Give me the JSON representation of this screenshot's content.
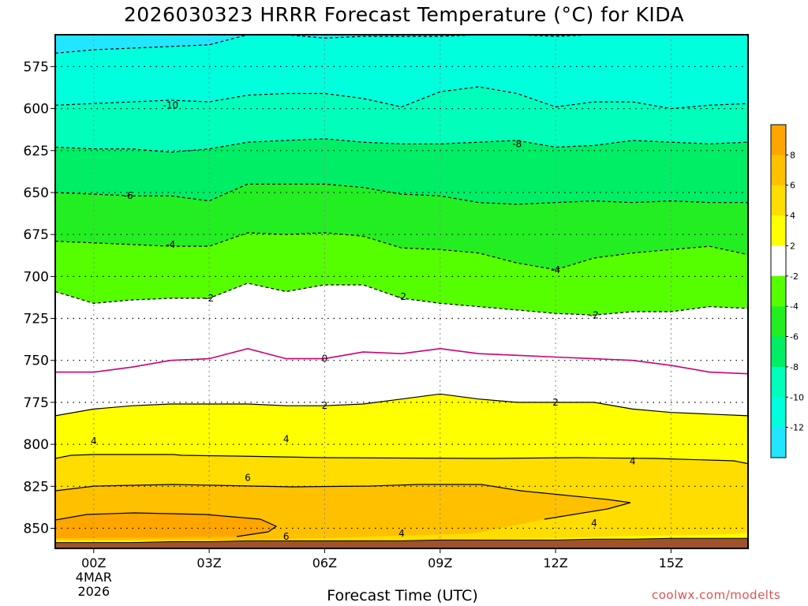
{
  "chart_data": {
    "type": "contour",
    "title": "2026030323 HRRR Forecast Temperature (°C) for KIDA",
    "xlabel": "Forecast Time (UTC)",
    "ylabel": "",
    "x": [
      -1,
      0,
      1,
      2,
      3,
      4,
      5,
      6,
      7,
      8,
      9,
      10,
      11,
      12,
      13,
      14,
      15,
      16,
      17
    ],
    "x_tick_values": [
      0,
      3,
      6,
      9,
      12,
      15
    ],
    "x_tick_labels": [
      "00Z",
      "03Z",
      "06Z",
      "09Z",
      "12Z",
      "15Z"
    ],
    "x_date_label": [
      "4MAR",
      "2026"
    ],
    "xlim": [
      -1,
      17
    ],
    "y_ticks": [
      575,
      600,
      625,
      650,
      675,
      700,
      725,
      750,
      775,
      800,
      825,
      850
    ],
    "ylim": [
      556,
      862
    ],
    "y_axis_inverted": true,
    "surface_pressure": [
      858.5,
      858.5,
      858.5,
      858,
      858,
      857.5,
      857.5,
      857.5,
      857.5,
      857.5,
      857,
      857,
      857,
      857,
      856.5,
      856.5,
      856,
      856,
      856
    ],
    "isotherms": [
      {
        "value": -12,
        "pressure": [
          567,
          565,
          564,
          563,
          562,
          556,
          556,
          558,
          557,
          557,
          557,
          556,
          556,
          557,
          556,
          556,
          556,
          556,
          556
        ]
      },
      {
        "value": -10,
        "pressure": [
          598,
          597,
          596,
          595,
          596,
          592,
          591,
          591,
          594,
          599,
          590,
          587,
          591,
          599,
          596,
          596,
          600,
          598,
          597
        ]
      },
      {
        "value": -8,
        "pressure": [
          623,
          624,
          624,
          626,
          624,
          620,
          619,
          618,
          620,
          621,
          621,
          620,
          619,
          623,
          622,
          619,
          620,
          621,
          620
        ]
      },
      {
        "value": -6,
        "pressure": [
          650,
          651,
          652,
          652,
          655,
          645,
          645,
          645,
          647,
          651,
          652,
          656,
          657,
          656,
          655,
          656,
          655,
          656,
          656
        ]
      },
      {
        "value": -4,
        "pressure": [
          679,
          680,
          681,
          682,
          682,
          674,
          675,
          674,
          676,
          683,
          684,
          686,
          692,
          696,
          689,
          686,
          684,
          682,
          687
        ]
      },
      {
        "value": -2,
        "pressure": [
          709,
          716,
          714,
          713,
          713,
          704,
          709,
          705,
          705,
          713,
          716,
          718,
          720,
          722,
          723,
          721,
          721,
          718,
          719
        ]
      },
      {
        "value": 0,
        "pressure": [
          757,
          757,
          754,
          750,
          749,
          743,
          749,
          749,
          745,
          746,
          743,
          746,
          747,
          748,
          749,
          750,
          753,
          757,
          758
        ]
      },
      {
        "value": 2,
        "pressure": [
          783,
          779,
          777,
          776,
          776,
          776,
          777,
          777,
          776,
          773,
          770,
          773,
          775,
          775,
          775,
          779,
          781,
          782,
          783
        ]
      }
    ],
    "contour_labels": [
      {
        "value": "-10",
        "x": 2.0,
        "y": 598
      },
      {
        "value": "-8",
        "x": 11.0,
        "y": 621
      },
      {
        "value": "-6",
        "x": 0.9,
        "y": 652
      },
      {
        "value": "-4",
        "x": 2.0,
        "y": 681
      },
      {
        "value": "-4",
        "x": 12.0,
        "y": 696
      },
      {
        "value": "-2",
        "x": 3.0,
        "y": 713
      },
      {
        "value": "-2",
        "x": 8.0,
        "y": 712
      },
      {
        "value": "-2",
        "x": 13.0,
        "y": 723
      },
      {
        "value": "0",
        "x": 6.0,
        "y": 749
      },
      {
        "value": "2",
        "x": 6.0,
        "y": 777
      },
      {
        "value": "2",
        "x": 12.0,
        "y": 775
      },
      {
        "value": "4",
        "x": 0.0,
        "y": 798
      },
      {
        "value": "4",
        "x": 5.0,
        "y": 797
      },
      {
        "value": "4",
        "x": 14.0,
        "y": 810
      },
      {
        "value": "4",
        "x": 13.0,
        "y": 847
      },
      {
        "value": "4",
        "x": 8.0,
        "y": 853
      },
      {
        "value": "6",
        "x": 4.0,
        "y": 820
      },
      {
        "value": "6",
        "x": 5.0,
        "y": 855
      }
    ],
    "colorbar": {
      "labels": [
        "8",
        "6",
        "4",
        "2",
        "-2",
        "-4",
        "-6",
        "-8",
        "-10",
        "-12"
      ],
      "colors": [
        "#ffa500",
        "#ffc000",
        "#ffdd00",
        "#ffff00",
        "#ffffff",
        "#55ff00",
        "#22ee22",
        "#00ee66",
        "#00ffbb",
        "#00ffdd",
        "#22e6ff"
      ]
    },
    "fill_colors": {
      "cold_minus14": "#22e6ff",
      "cold_minus12": "#00ffdd",
      "cold_minus10": "#00ffbb",
      "cold_minus8": "#00ee66",
      "cold_minus6": "#22ee22",
      "cold_minus4": "#55ff00",
      "near_zero": "#ffffff",
      "warm_2": "#ffff00",
      "warm_4": "#ffdd00",
      "warm_6": "#ffc000",
      "warm_8": "#ffa500",
      "zero_line": "#cc0077",
      "ground": "#a0522d"
    }
  },
  "credit": "coolwx.com/modelts"
}
